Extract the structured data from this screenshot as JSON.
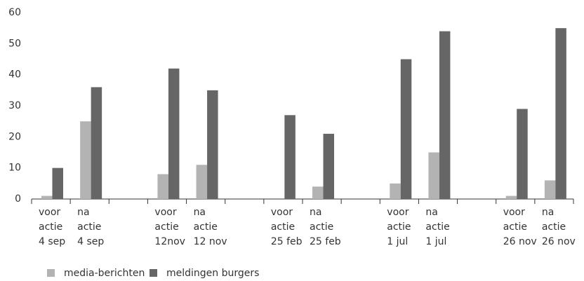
{
  "chart_data": {
    "type": "bar",
    "categories": [
      [
        "voor",
        "actie",
        "4 sep"
      ],
      [
        "na",
        "actie",
        "4 sep"
      ],
      null,
      [
        "voor",
        "actie",
        "12nov"
      ],
      [
        "na",
        "actie",
        "12 nov"
      ],
      null,
      [
        "voor",
        "actie",
        "25 feb"
      ],
      [
        "na",
        "actie",
        "25 feb"
      ],
      null,
      [
        "voor",
        "actie",
        "1 jul"
      ],
      [
        "na",
        "actie",
        "1 jul"
      ],
      null,
      [
        "voor",
        "actie",
        "26 nov"
      ],
      [
        "na",
        "actie",
        "26 nov"
      ]
    ],
    "series": [
      {
        "name": "media-berichten",
        "color": "#b3b3b3",
        "values": [
          1,
          25,
          null,
          8,
          11,
          null,
          0,
          4,
          null,
          5,
          15,
          null,
          1,
          6
        ]
      },
      {
        "name": "meldingen burgers",
        "color": "#666666",
        "values": [
          10,
          36,
          null,
          42,
          35,
          null,
          27,
          21,
          null,
          45,
          54,
          null,
          29,
          55
        ]
      }
    ],
    "ylim": [
      0,
      60
    ],
    "yticks": [
      0,
      10,
      20,
      30,
      40,
      50,
      60
    ],
    "grid": false,
    "legend": "bottom-left"
  }
}
